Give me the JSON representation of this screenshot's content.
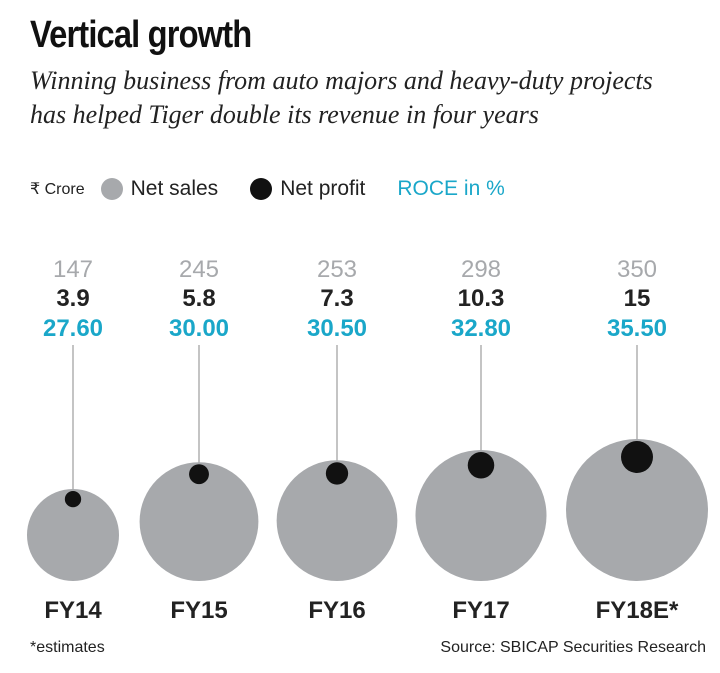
{
  "header": {
    "title": "Vertical growth",
    "subtitle_line1": "Winning business from auto majors and heavy-duty projects",
    "subtitle_line2": "has helped Tiger double its revenue in four years"
  },
  "legend": {
    "unit": "₹ Crore",
    "net_sales": "Net sales",
    "net_profit": "Net profit",
    "roce": "ROCE in %"
  },
  "colors": {
    "net_sales": "#a7a9ac",
    "net_profit": "#111111",
    "roce": "#1aa7c9",
    "sales_label": "#a7a9ac",
    "profit_label": "#222222"
  },
  "chart_data": {
    "type": "bubble",
    "categories": [
      "FY14",
      "FY15",
      "FY16",
      "FY17",
      "FY18E*"
    ],
    "series": [
      {
        "name": "Net sales",
        "values": [
          147,
          245,
          253,
          298,
          350
        ]
      },
      {
        "name": "Net profit",
        "values": [
          3.9,
          5.8,
          7.3,
          10.3,
          15
        ]
      },
      {
        "name": "ROCE in %",
        "values": [
          "27.60",
          "30.00",
          "30.50",
          "32.80",
          "35.50"
        ]
      }
    ]
  },
  "sales_labels": [
    "147",
    "245",
    "253",
    "298",
    "350"
  ],
  "profit_labels": [
    "3.9",
    "5.8",
    "7.3",
    "10.3",
    "15"
  ],
  "footer": {
    "note": "*estimates",
    "source": "Source: SBICAP Securities Research"
  }
}
